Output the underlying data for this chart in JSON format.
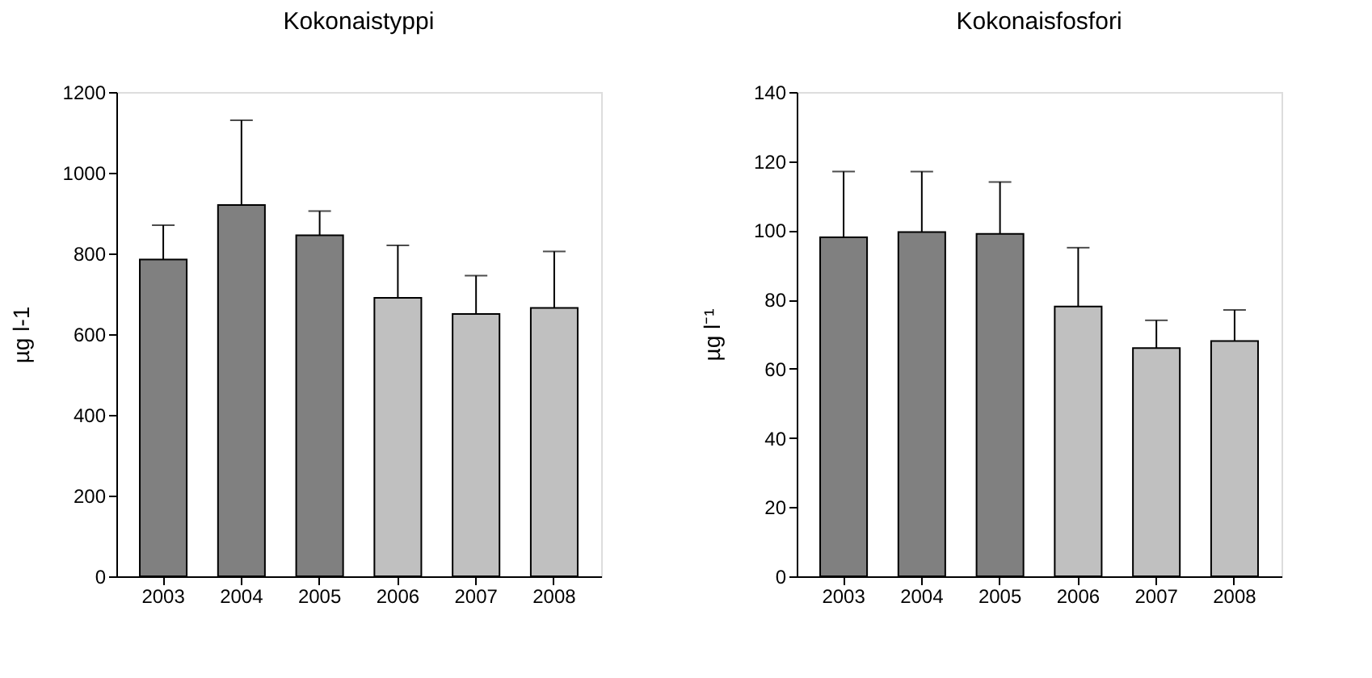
{
  "chart_data": [
    {
      "type": "bar",
      "title": "Kokonaistyppi",
      "ylabel": "µg l-1",
      "categories": [
        "2003",
        "2004",
        "2005",
        "2006",
        "2007",
        "2008"
      ],
      "values": [
        785,
        920,
        845,
        690,
        650,
        665
      ],
      "colors": [
        "#808080",
        "#808080",
        "#808080",
        "#c0c0c0",
        "#c0c0c0",
        "#c0c0c0"
      ],
      "errors": [
        [
          785,
          870
        ],
        [
          920,
          1130
        ],
        [
          845,
          905
        ],
        [
          690,
          820
        ],
        [
          650,
          745
        ],
        [
          665,
          805
        ]
      ],
      "ylim": [
        0,
        1200
      ],
      "yticks": [
        0,
        200,
        400,
        600,
        800,
        1000,
        1200
      ],
      "grid": false
    },
    {
      "type": "bar",
      "title": "Kokonaisfosfori",
      "ylabel": "µg l⁻¹",
      "categories": [
        "2003",
        "2004",
        "2005",
        "2006",
        "2007",
        "2008"
      ],
      "values": [
        98,
        99.5,
        99,
        78,
        66,
        68
      ],
      "colors": [
        "#808080",
        "#808080",
        "#808080",
        "#c0c0c0",
        "#c0c0c0",
        "#c0c0c0"
      ],
      "errors": [
        [
          98,
          117
        ],
        [
          99.5,
          117
        ],
        [
          99,
          114
        ],
        [
          78,
          95
        ],
        [
          66,
          74
        ],
        [
          68,
          77
        ]
      ],
      "ylim": [
        0,
        140
      ],
      "yticks": [
        0,
        20,
        40,
        60,
        80,
        100,
        120,
        140
      ],
      "grid": false
    }
  ]
}
